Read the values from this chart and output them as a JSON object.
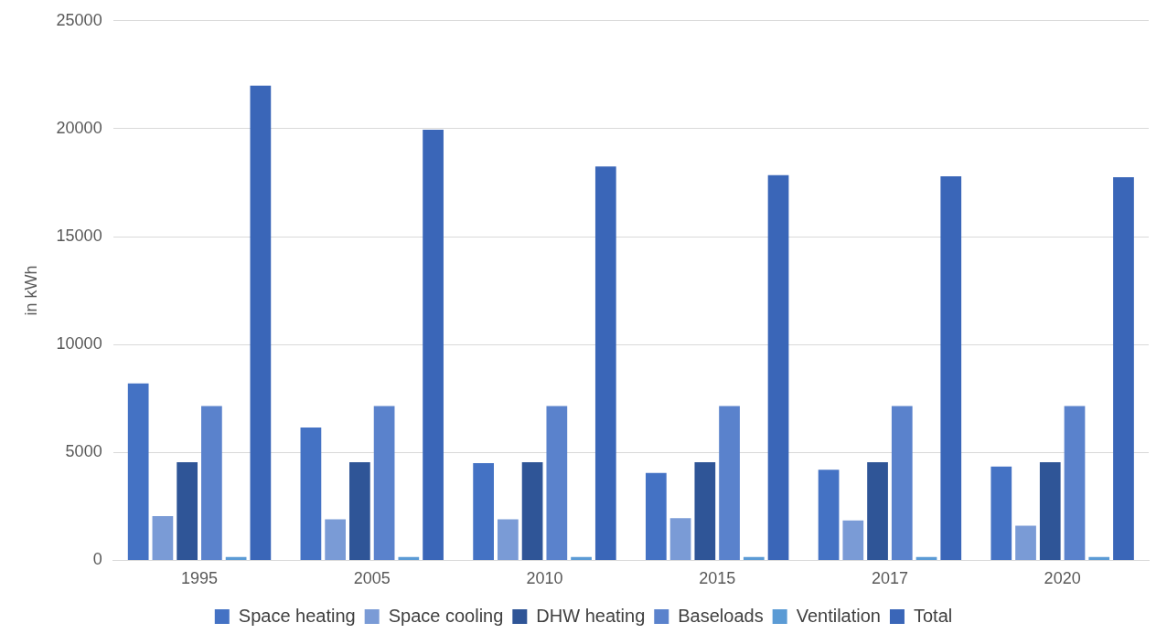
{
  "chart_data": {
    "type": "bar",
    "ylabel": "in kWh",
    "categories": [
      "1995",
      "2005",
      "2010",
      "2015",
      "2017",
      "2020"
    ],
    "series": [
      {
        "name": "Space heating",
        "color": "#4472c4",
        "values": [
          8200,
          6150,
          4500,
          4050,
          4200,
          4350
        ]
      },
      {
        "name": "Space cooling",
        "color": "#7a9bd6",
        "values": [
          2050,
          1900,
          1900,
          1950,
          1850,
          1600
        ]
      },
      {
        "name": "DHW heating",
        "color": "#2f5597",
        "values": [
          4550,
          4550,
          4550,
          4550,
          4550,
          4550
        ]
      },
      {
        "name": "Baseloads",
        "color": "#5a82cc",
        "values": [
          7150,
          7150,
          7150,
          7150,
          7150,
          7150
        ]
      },
      {
        "name": "Ventilation",
        "color": "#5b9bd5",
        "values": [
          150,
          150,
          150,
          150,
          150,
          150
        ]
      },
      {
        "name": "Total",
        "color": "#3a66b8",
        "values": [
          22000,
          19950,
          18250,
          17850,
          17800,
          17750
        ]
      }
    ],
    "ylim": [
      0,
      25000
    ],
    "yticks": [
      0,
      5000,
      10000,
      15000,
      20000,
      25000
    ],
    "grid": "y",
    "legend": "bottom"
  }
}
